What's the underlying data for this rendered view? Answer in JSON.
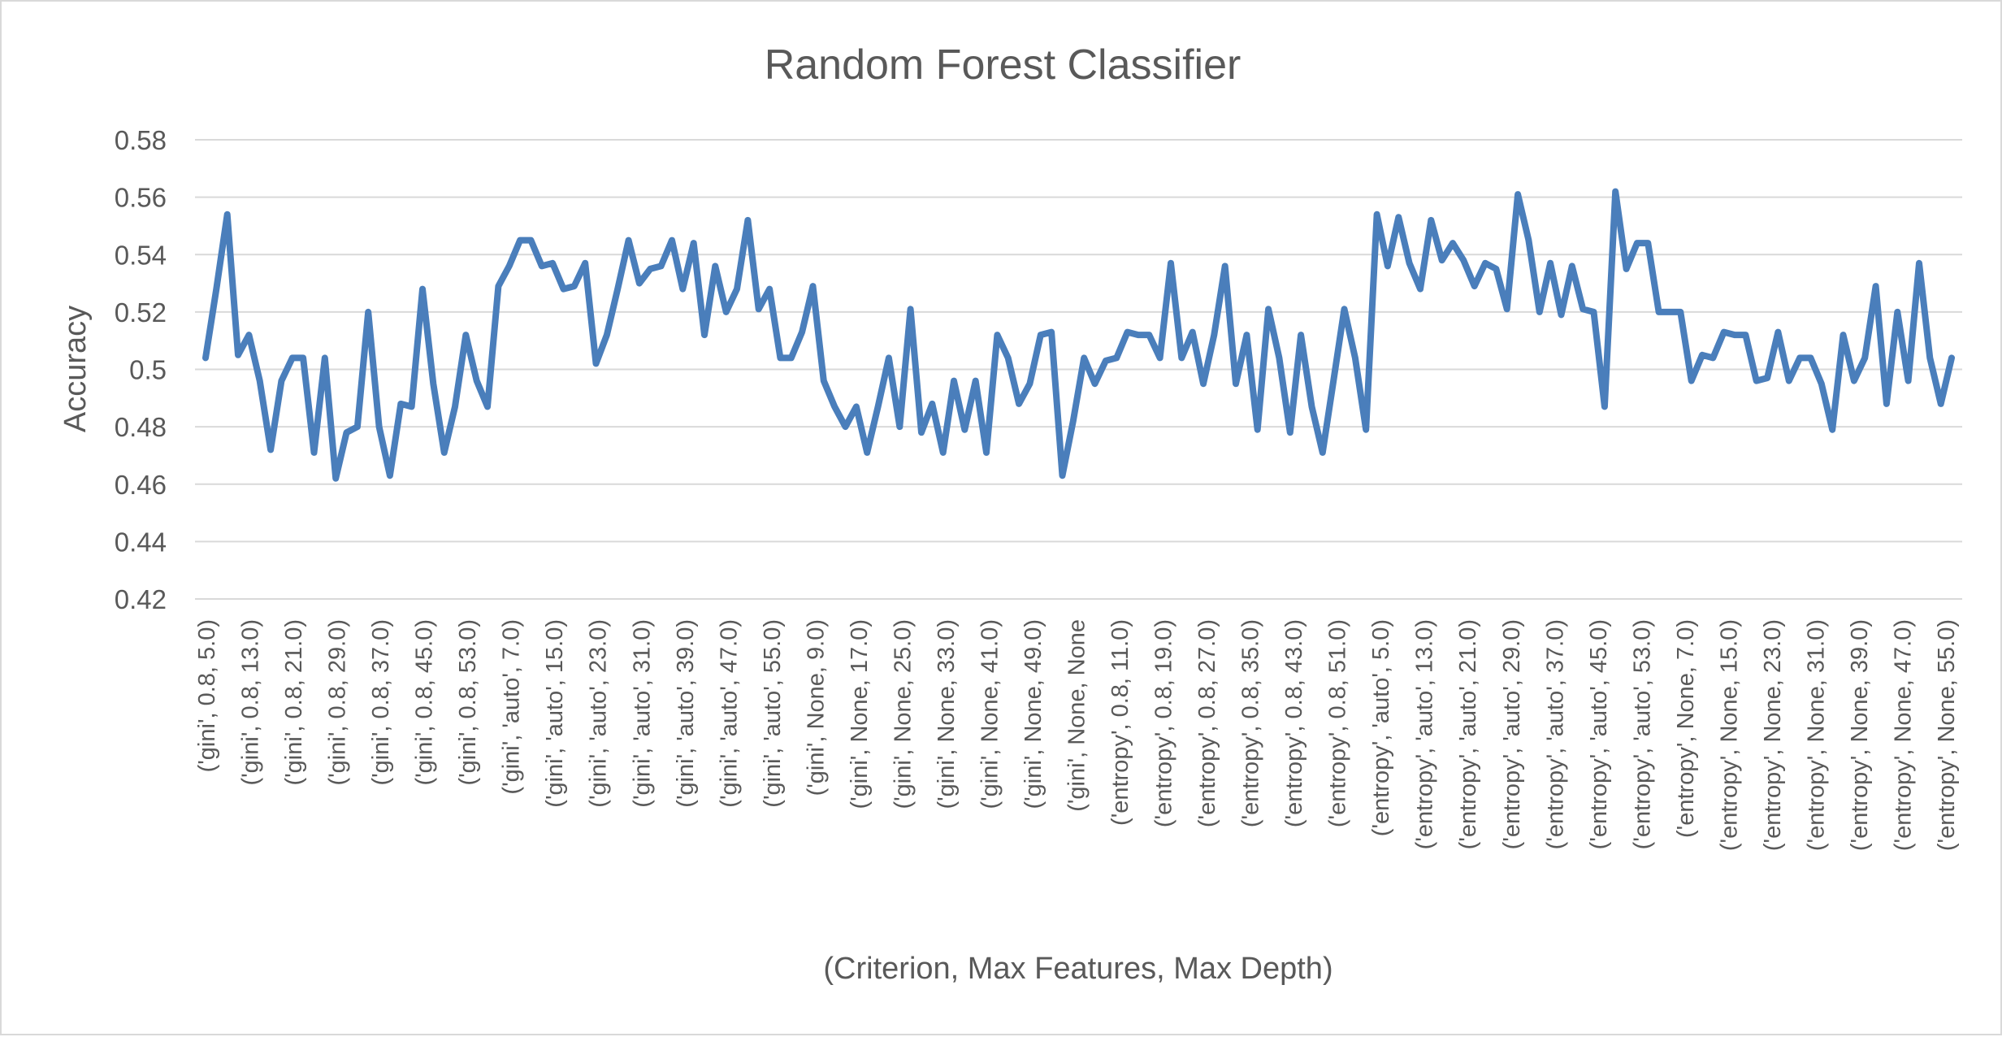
{
  "chart_data": {
    "type": "line",
    "title": "Random Forest Classifier",
    "xlabel": "(Criterion, Max Features, Max Depth)",
    "ylabel": "Accuracy",
    "ylim": [
      0.42,
      0.58
    ],
    "y_ticks": [
      "0.42",
      "0.44",
      "0.46",
      "0.48",
      "0.5",
      "0.52",
      "0.54",
      "0.56",
      "0.58"
    ],
    "grid": true,
    "legend": "none",
    "line_color": "#4a7ebb",
    "x_tick_labels": [
      "('gini', 0.8, 5.0)",
      "('gini', 0.8, 13.0)",
      "('gini', 0.8, 21.0)",
      "('gini', 0.8, 29.0)",
      "('gini', 0.8, 37.0)",
      "('gini', 0.8, 45.0)",
      "('gini', 0.8, 53.0)",
      "('gini', 'auto', 7.0)",
      "('gini', 'auto', 15.0)",
      "('gini', 'auto', 23.0)",
      "('gini', 'auto', 31.0)",
      "('gini', 'auto', 39.0)",
      "('gini', 'auto', 47.0)",
      "('gini', 'auto', 55.0)",
      "('gini', None, 9.0)",
      "('gini', None, 17.0)",
      "('gini', None, 25.0)",
      "('gini', None, 33.0)",
      "('gini', None, 41.0)",
      "('gini', None, 49.0)",
      "('gini', None, None",
      "('entropy', 0.8, 11.0)",
      "('entropy', 0.8, 19.0)",
      "('entropy', 0.8, 27.0)",
      "('entropy', 0.8, 35.0)",
      "('entropy', 0.8, 43.0)",
      "('entropy', 0.8, 51.0)",
      "('entropy', 'auto', 5.0)",
      "('entropy', 'auto', 13.0)",
      "('entropy', 'auto', 21.0)",
      "('entropy', 'auto', 29.0)",
      "('entropy', 'auto', 37.0)",
      "('entropy', 'auto', 45.0)",
      "('entropy', 'auto', 53.0)",
      "('entropy', None, 7.0)",
      "('entropy', None, 15.0)",
      "('entropy', None, 23.0)",
      "('entropy', None, 31.0)",
      "('entropy', None, 39.0)",
      "('entropy', None, 47.0)",
      "('entropy', None, 55.0)"
    ],
    "series": [
      {
        "values": [
          0.504,
          0.528,
          0.554,
          0.505,
          0.512,
          0.496,
          0.472,
          0.496,
          0.504,
          0.504,
          0.471,
          0.504,
          0.462,
          0.478,
          0.48,
          0.52,
          0.48,
          0.463,
          0.488,
          0.487,
          0.528,
          0.495,
          0.471,
          0.487,
          0.512,
          0.496,
          0.487,
          0.529,
          0.536,
          0.545,
          0.545,
          0.536,
          0.537,
          0.528,
          0.529,
          0.537,
          0.502,
          0.512,
          0.528,
          0.545,
          0.53,
          0.535,
          0.536,
          0.545,
          0.528,
          0.544,
          0.512,
          0.536,
          0.52,
          0.528,
          0.552,
          0.521,
          0.528,
          0.504,
          0.504,
          0.513,
          0.529,
          0.496,
          0.487,
          0.48,
          0.487,
          0.471,
          0.487,
          0.504,
          0.48,
          0.521,
          0.478,
          0.488,
          0.471,
          0.496,
          0.479,
          0.496,
          0.471,
          0.512,
          0.504,
          0.488,
          0.495,
          0.512,
          0.513,
          0.463,
          0.482,
          0.504,
          0.495,
          0.503,
          0.504,
          0.513,
          0.512,
          0.512,
          0.504,
          0.537,
          0.504,
          0.513,
          0.495,
          0.512,
          0.536,
          0.495,
          0.512,
          0.479,
          0.521,
          0.504,
          0.478,
          0.512,
          0.487,
          0.471,
          0.496,
          0.521,
          0.504,
          0.479,
          0.554,
          0.536,
          0.553,
          0.537,
          0.528,
          0.552,
          0.538,
          0.544,
          0.538,
          0.529,
          0.537,
          0.535,
          0.521,
          0.561,
          0.545,
          0.52,
          0.537,
          0.519,
          0.536,
          0.521,
          0.52,
          0.487,
          0.562,
          0.535,
          0.544,
          0.544,
          0.52,
          0.52,
          0.52,
          0.496,
          0.505,
          0.504,
          0.513,
          0.512,
          0.512,
          0.496,
          0.497,
          0.513,
          0.496,
          0.504,
          0.504,
          0.495,
          0.479,
          0.512,
          0.496,
          0.504,
          0.529,
          0.488,
          0.52,
          0.496,
          0.537,
          0.504,
          0.488,
          0.504
        ]
      }
    ]
  }
}
